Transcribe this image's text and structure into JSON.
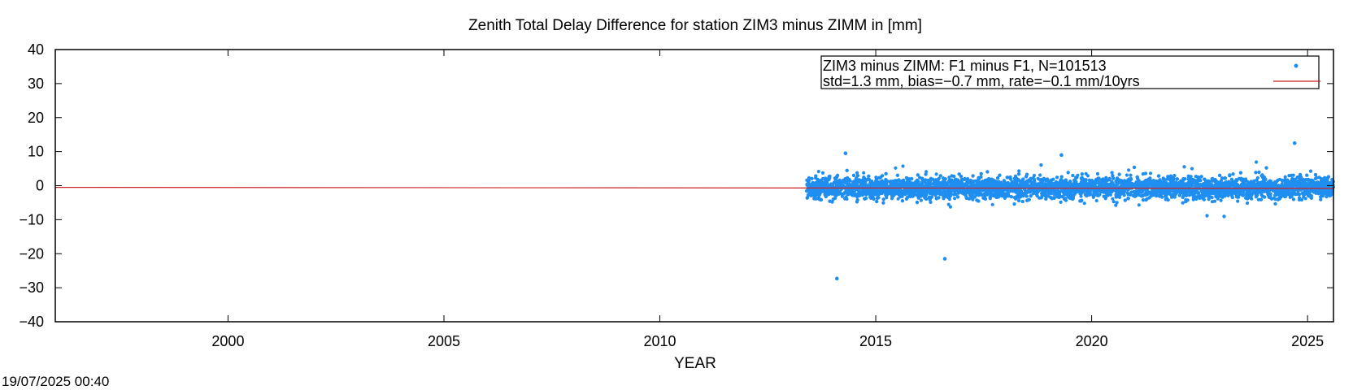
{
  "chart_data": {
    "type": "scatter",
    "title": "Zenith Total Delay Difference for station ZIM3 minus ZIMM in [mm]",
    "xlabel": "YEAR",
    "ylabel": "",
    "xlim": [
      1996.0,
      2025.6
    ],
    "ylim": [
      -40,
      40
    ],
    "xticks": [
      2000,
      2005,
      2010,
      2015,
      2020,
      2025
    ],
    "yticks": [
      40,
      30,
      20,
      10,
      0,
      -10,
      -20,
      -30,
      -40
    ],
    "xtick_labels": [
      "2000",
      "2005",
      "2010",
      "2015",
      "2020",
      "2025"
    ],
    "ytick_labels": [
      "40",
      "30",
      "20",
      "10",
      "0",
      "−10",
      "−20",
      "−30",
      "−40"
    ],
    "grid": false,
    "legend_placement": "top-right",
    "series": [
      {
        "name": "ZIM3 minus ZIMM: F1 minus F1, N=101513",
        "type": "scatter",
        "color": "#1f8ef1",
        "x_range": [
          2013.4,
          2025.6
        ],
        "count": 101513,
        "center": -0.7,
        "spread_std": 1.3,
        "outliers": [
          {
            "x": 2014.1,
            "y": -27.3
          },
          {
            "x": 2016.6,
            "y": -21.5
          },
          {
            "x": 2024.7,
            "y": 12.5
          },
          {
            "x": 2014.3,
            "y": 9.5
          },
          {
            "x": 2019.3,
            "y": 9.0
          }
        ]
      },
      {
        "name": "std=1.3 mm, bias=−0.7 mm, rate=−0.1 mm/10yrs",
        "type": "line",
        "color": "#cc2222",
        "x": [
          1996.0,
          2025.6
        ],
        "y": [
          -0.5,
          -0.8
        ]
      }
    ],
    "timestamp": "19/07/2025 00:40"
  }
}
